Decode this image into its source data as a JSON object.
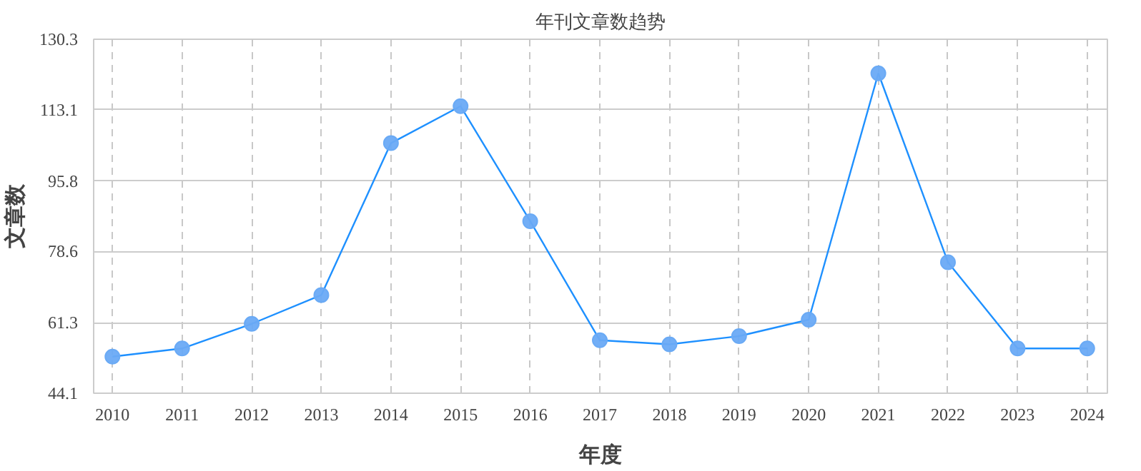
{
  "chart_data": {
    "type": "line",
    "title": "年刊文章数趋势",
    "xlabel": "年度",
    "ylabel": "文章数",
    "categories": [
      "2010",
      "2011",
      "2012",
      "2013",
      "2014",
      "2015",
      "2016",
      "2017",
      "2018",
      "2019",
      "2020",
      "2021",
      "2022",
      "2023",
      "2024"
    ],
    "series": [
      {
        "color": "#1e90ff",
        "values": [
          53,
          55,
          61,
          68,
          105,
          114,
          86,
          57,
          56,
          58,
          62,
          122,
          76,
          55,
          55
        ]
      }
    ],
    "ylim": [
      44.1,
      130.3
    ],
    "yticks": [
      44.1,
      61.3,
      78.6,
      95.8,
      113.1,
      130.3
    ],
    "grid": true,
    "marker": "circle",
    "line_style": "solid"
  }
}
